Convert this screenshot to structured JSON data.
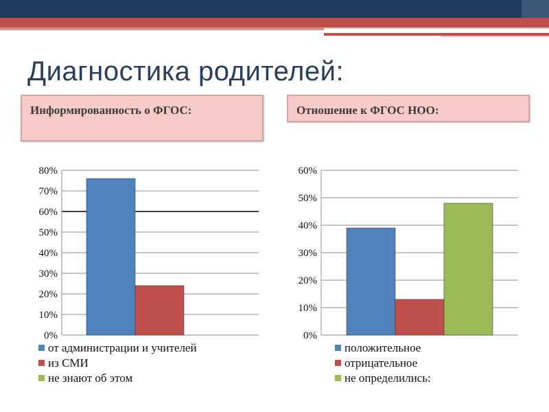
{
  "title": "Диагностика родителей:",
  "box_left": "Информированность о ФГОС:",
  "box_right": "Отношение к ФГОС НОО:",
  "colors": {
    "blue": "#4f81bd",
    "red": "#c0504d",
    "green": "#9bbb59"
  },
  "chart_data": [
    {
      "type": "bar",
      "ylim": [
        0,
        0.8
      ],
      "yticks": [
        "80%",
        "70%",
        "60%",
        "50%",
        "40%",
        "30%",
        "20%",
        "10%",
        "0%"
      ],
      "series": [
        {
          "name": "от администрации и учителей",
          "value": 0.76,
          "color": "#4f81bd"
        },
        {
          "name": "из СМИ",
          "value": 0.24,
          "color": "#c0504d"
        },
        {
          "name": "не знают об этом",
          "value": 0,
          "color": "#9bbb59"
        }
      ]
    },
    {
      "type": "bar",
      "ylim": [
        0,
        0.6
      ],
      "yticks": [
        "60%",
        "50%",
        "40%",
        "30%",
        "20%",
        "10%",
        "0%"
      ],
      "series": [
        {
          "name": "положительное",
          "value": 0.39,
          "color": "#4f81bd"
        },
        {
          "name": "отрицательное",
          "value": 0.13,
          "color": "#c0504d"
        },
        {
          "name": "не определились:",
          "value": 0.48,
          "color": "#9bbb59"
        }
      ]
    }
  ]
}
